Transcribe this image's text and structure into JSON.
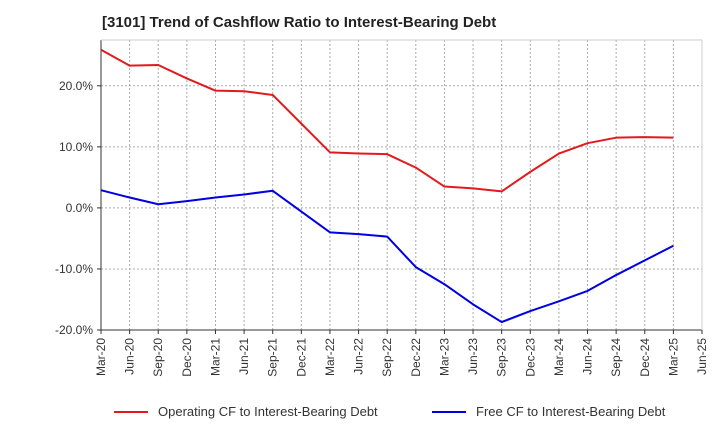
{
  "chart_data": {
    "type": "line",
    "title": "[3101]  Trend of Cashflow Ratio to Interest-Bearing Debt",
    "xlabel": "",
    "ylabel": "",
    "x_tick_labels": [
      "Mar-20",
      "Jun-20",
      "Sep-20",
      "Dec-20",
      "Mar-21",
      "Jun-21",
      "Sep-21",
      "Dec-21",
      "Mar-22",
      "Jun-22",
      "Sep-22",
      "Dec-22",
      "Mar-23",
      "Jun-23",
      "Sep-23",
      "Dec-23",
      "Mar-24",
      "Jun-24",
      "Sep-24",
      "Dec-24",
      "Mar-25",
      "Jun-25"
    ],
    "y_ticks": [
      20,
      10,
      0,
      -10,
      -20
    ],
    "y_tick_labels": [
      "20.0%",
      "10.0%",
      "0.0%",
      "-10.0%",
      "-20.0%"
    ],
    "ylim": [
      -20,
      27.5
    ],
    "grid": true,
    "legend_position": "bottom",
    "series": [
      {
        "name": "Operating CF to Interest-Bearing Debt",
        "color": "#e31a1c",
        "values": [
          25.9,
          23.3,
          23.4,
          21.2,
          19.2,
          19.1,
          18.5,
          13.8,
          9.1,
          8.9,
          8.8,
          6.6,
          3.5,
          3.2,
          2.7,
          5.9,
          8.9,
          10.6,
          11.5,
          11.6,
          11.5,
          null
        ]
      },
      {
        "name": "Free CF to Interest-Bearing Debt",
        "color": "#0000e0",
        "values": [
          2.9,
          1.7,
          0.6,
          1.1,
          1.7,
          2.2,
          2.8,
          -0.6,
          -4.0,
          -4.3,
          -4.7,
          -9.7,
          -12.5,
          -15.8,
          -18.7,
          -16.9,
          -15.3,
          -13.6,
          -11.0,
          -8.6,
          -6.2,
          null
        ]
      }
    ]
  }
}
